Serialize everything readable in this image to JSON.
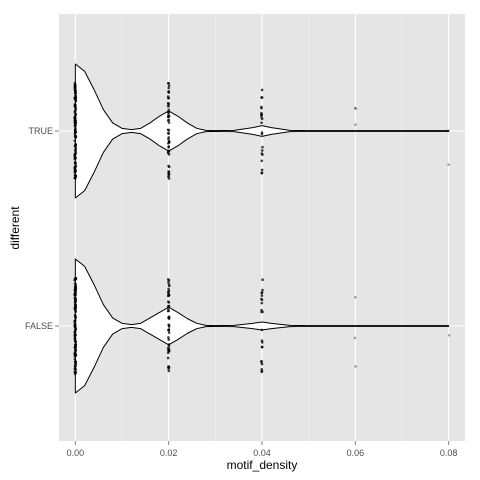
{
  "chart_data": {
    "type": "violin",
    "xlabel": "motif_density",
    "ylabel": "different",
    "xlim": [
      -0.0035,
      0.0835
    ],
    "x_ticks": [
      0.0,
      0.02,
      0.04,
      0.06,
      0.08
    ],
    "x_tick_labels": [
      "0.00",
      "0.02",
      "0.04",
      "0.06",
      "0.08"
    ],
    "categories": [
      "TRUE",
      "FALSE"
    ],
    "grid": true,
    "legend": "none",
    "colors": {
      "panel_background": "#e5e5e5",
      "grid_major": "#ffffff",
      "grid_minor": "#f2f2f2",
      "violin_fill": "#ffffff",
      "violin_outline": "#000000",
      "points": "#000000"
    },
    "violins": [
      {
        "category": "TRUE",
        "density_profile": [
          [
            0.0,
            1.0
          ],
          [
            0.002,
            0.89
          ],
          [
            0.004,
            0.62
          ],
          [
            0.006,
            0.32
          ],
          [
            0.008,
            0.12
          ],
          [
            0.01,
            0.04
          ],
          [
            0.012,
            0.02
          ],
          [
            0.014,
            0.04
          ],
          [
            0.016,
            0.12
          ],
          [
            0.018,
            0.22
          ],
          [
            0.02,
            0.3
          ],
          [
            0.022,
            0.22
          ],
          [
            0.024,
            0.12
          ],
          [
            0.026,
            0.04
          ],
          [
            0.028,
            0.01
          ],
          [
            0.03,
            0.0
          ],
          [
            0.034,
            0.01
          ],
          [
            0.038,
            0.05
          ],
          [
            0.04,
            0.08
          ],
          [
            0.042,
            0.05
          ],
          [
            0.046,
            0.01
          ],
          [
            0.05,
            0.0
          ],
          [
            0.06,
            0.0
          ],
          [
            0.07,
            0.0
          ],
          [
            0.08,
            0.0
          ]
        ],
        "points": [
          {
            "x": 0.0,
            "n": 120
          },
          {
            "x": 0.02,
            "n": 50
          },
          {
            "x": 0.04,
            "n": 22
          },
          {
            "x": 0.06,
            "n": 3
          },
          {
            "x": 0.08,
            "n": 2
          }
        ]
      },
      {
        "category": "FALSE",
        "density_profile": [
          [
            0.0,
            1.0
          ],
          [
            0.002,
            0.89
          ],
          [
            0.004,
            0.62
          ],
          [
            0.006,
            0.32
          ],
          [
            0.008,
            0.12
          ],
          [
            0.01,
            0.04
          ],
          [
            0.012,
            0.02
          ],
          [
            0.014,
            0.04
          ],
          [
            0.016,
            0.12
          ],
          [
            0.018,
            0.2
          ],
          [
            0.02,
            0.28
          ],
          [
            0.022,
            0.2
          ],
          [
            0.024,
            0.11
          ],
          [
            0.026,
            0.04
          ],
          [
            0.028,
            0.01
          ],
          [
            0.03,
            0.0
          ],
          [
            0.034,
            0.01
          ],
          [
            0.038,
            0.04
          ],
          [
            0.04,
            0.06
          ],
          [
            0.042,
            0.04
          ],
          [
            0.046,
            0.01
          ],
          [
            0.05,
            0.0
          ],
          [
            0.06,
            0.0
          ],
          [
            0.07,
            0.0
          ],
          [
            0.08,
            0.0
          ]
        ],
        "points": [
          {
            "x": 0.0,
            "n": 120
          },
          {
            "x": 0.02,
            "n": 50
          },
          {
            "x": 0.04,
            "n": 22
          },
          {
            "x": 0.06,
            "n": 3
          },
          {
            "x": 0.08,
            "n": 1
          }
        ]
      }
    ]
  }
}
